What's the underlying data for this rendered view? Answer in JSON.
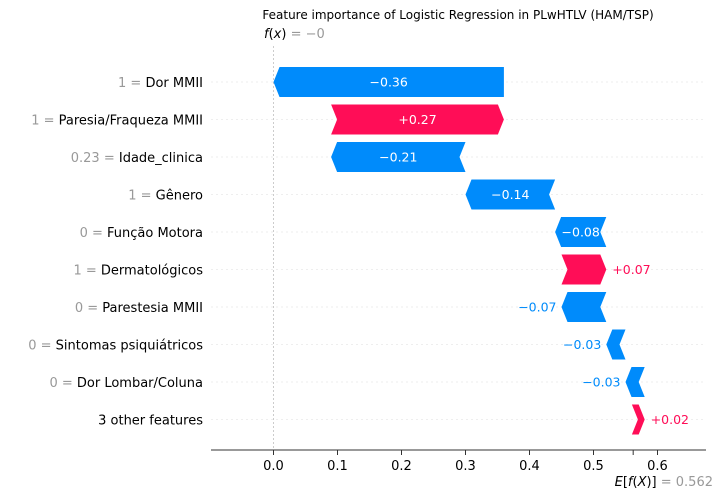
{
  "chart_data": {
    "type": "waterfall",
    "title": "Feature importance of Logistic Regression in PLwHTLV (HAM/TSP)",
    "fx_label": "f(x)",
    "fx_value_text": " = −0",
    "fx_value": 0.0,
    "ex_label": "E[f(X)]",
    "ex_value_text": " = 0.562",
    "ex_value": 0.562,
    "xlim": [
      -0.1,
      0.7
    ],
    "xticks": [
      {
        "value": 0.0,
        "label": "0.0"
      },
      {
        "value": 0.1,
        "label": "0.1"
      },
      {
        "value": 0.2,
        "label": "0.2"
      },
      {
        "value": 0.3,
        "label": "0.3"
      },
      {
        "value": 0.4,
        "label": "0.4"
      },
      {
        "value": 0.5,
        "label": "0.5"
      },
      {
        "value": 0.6,
        "label": "0.6"
      }
    ],
    "colors": {
      "positive": "#ff0d57",
      "negative": "#008bfb",
      "muted": "#999999"
    },
    "features": [
      {
        "value": "1",
        "name": "Dor MMII",
        "contribution": -0.36,
        "label": "−0.36"
      },
      {
        "value": "1",
        "name": "Paresia/Fraqueza MMII",
        "contribution": 0.27,
        "label": "+0.27"
      },
      {
        "value": "0.23",
        "name": "Idade_clinica",
        "contribution": -0.21,
        "label": "−0.21"
      },
      {
        "value": "1",
        "name": "Gênero",
        "contribution": -0.14,
        "label": "−0.14"
      },
      {
        "value": "0",
        "name": "Função Motora",
        "contribution": -0.08,
        "label": "−0.08"
      },
      {
        "value": "1",
        "name": "Dermatológicos",
        "contribution": 0.07,
        "label": "+0.07"
      },
      {
        "value": "0",
        "name": "Parestesia MMII",
        "contribution": -0.07,
        "label": "−0.07"
      },
      {
        "value": "0",
        "name": "Sintomas psiquiátricos",
        "contribution": -0.03,
        "label": "−0.03"
      },
      {
        "value": "0",
        "name": "Dor Lombar/Coluna",
        "contribution": -0.03,
        "label": "−0.03"
      },
      {
        "value": "",
        "name": "3 other features",
        "contribution": 0.02,
        "label": "+0.02"
      }
    ]
  }
}
